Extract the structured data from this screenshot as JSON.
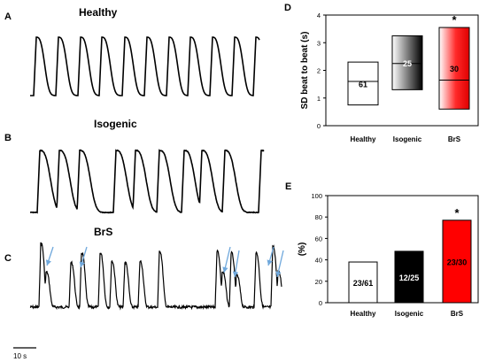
{
  "panels": {
    "A": {
      "label": "A",
      "title": "Healthy"
    },
    "B": {
      "label": "B",
      "title": "Isogenic"
    },
    "C": {
      "label": "C",
      "title": "BrS"
    },
    "D": {
      "label": "D"
    },
    "E": {
      "label": "E"
    }
  },
  "scale_bar": {
    "label": "10 s"
  },
  "colors": {
    "healthy": "#ffffff",
    "isogenic": "#000000",
    "brs": "#ff0000",
    "arrow": "#6fa8dc"
  },
  "chart_data": [
    {
      "type": "box",
      "panel": "D",
      "categories": [
        "Healthy",
        "Isogenic",
        "BrS"
      ],
      "ylabel": "SD beat to beat (s)",
      "ylim": [
        0,
        4
      ],
      "yticks": [
        0,
        1,
        2,
        3,
        4
      ],
      "boxes": [
        {
          "category": "Healthy",
          "min": 0.75,
          "max": 2.3,
          "median": 1.6,
          "n_label": "61"
        },
        {
          "category": "Isogenic",
          "min": 1.3,
          "max": 3.25,
          "median": 2.25,
          "n_label": "25"
        },
        {
          "category": "BrS",
          "min": 0.6,
          "max": 3.55,
          "median": 1.65,
          "n_label": "30"
        }
      ],
      "annotations": [
        {
          "category": "BrS",
          "text": "*"
        }
      ]
    },
    {
      "type": "bar",
      "panel": "E",
      "categories": [
        "Healthy",
        "Isogenic",
        "BrS"
      ],
      "values": [
        38,
        48,
        77
      ],
      "bar_labels": [
        "23/61",
        "12/25",
        "23/30"
      ],
      "ylabel": "(%)",
      "ylim": [
        0,
        100
      ],
      "yticks": [
        0,
        20,
        40,
        60,
        80,
        100
      ],
      "annotations": [
        {
          "category": "BrS",
          "text": "*"
        }
      ]
    }
  ]
}
